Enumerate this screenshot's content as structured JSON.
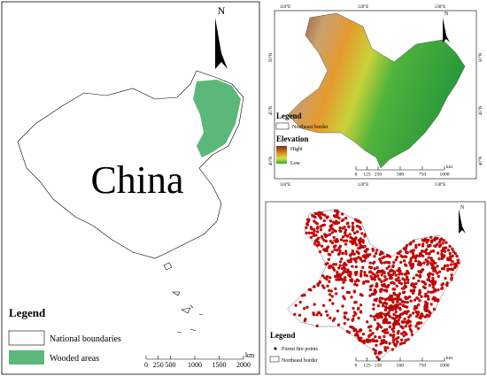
{
  "china_map": {
    "north": "N",
    "label": "China",
    "legend": {
      "title": "Legend",
      "items": [
        "National boundaries",
        "Wooded areas"
      ]
    },
    "scale": {
      "ticks": [
        0,
        250,
        500,
        1000,
        1500,
        2000
      ],
      "unit": "km"
    }
  },
  "elevation_map": {
    "north": "N",
    "top_lon": [
      "110°E",
      "120°E",
      "130°E"
    ],
    "bottom_lon": [
      "110°E",
      "120°E",
      "130°E"
    ],
    "left_lat": [
      "50°N",
      "45°N",
      "40°N"
    ],
    "right_lat": [
      "50°N",
      "45°N",
      "40°N"
    ],
    "legend": {
      "title": "Legend",
      "border": "Northeast border",
      "elevation_title": "Elevation",
      "high": "Hight",
      "low": "Low"
    },
    "scale": {
      "ticks": [
        0,
        125,
        250,
        500,
        750,
        1000
      ],
      "unit": "km"
    }
  },
  "fire_map": {
    "north": "N",
    "legend": {
      "title": "Legend",
      "points": "Forest fire points",
      "border": "Northeast border"
    },
    "scale": {
      "ticks": [
        0,
        125,
        250,
        500,
        750,
        1000
      ],
      "unit": "km"
    }
  }
}
